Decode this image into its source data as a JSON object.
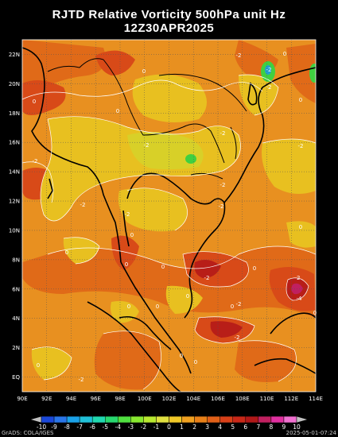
{
  "title_line1": "RJTD Relative Vorticity 500hPa unit Hz",
  "title_line2": "12Z30APR2025",
  "lat_labels": [
    "22N",
    "20N",
    "18N",
    "16N",
    "14N",
    "12N",
    "10N",
    "8N",
    "6N",
    "4N",
    "2N",
    "EQ"
  ],
  "lon_labels": [
    "90E",
    "92E",
    "94E",
    "96E",
    "98E",
    "100E",
    "102E",
    "104E",
    "106E",
    "108E",
    "110E",
    "112E",
    "114E"
  ],
  "contour_labels": [
    "0",
    "0",
    "0",
    "-2",
    "0",
    "-2",
    "-2",
    "0",
    "-2",
    "-2",
    "0",
    "-2",
    "-2",
    "-2",
    "0",
    "0",
    "-2",
    "0",
    "0",
    "-2",
    "0",
    "0",
    "-2",
    "0",
    "0",
    "-2",
    "-4",
    "0",
    "-2",
    "0",
    "-2",
    "0",
    "-2",
    "-2",
    "0",
    "0"
  ],
  "colorbar_labels": [
    "-10",
    "-9",
    "-8",
    "-7",
    "-6",
    "-5",
    "-4",
    "-3",
    "-2",
    "-1",
    "0",
    "1",
    "2",
    "3",
    "4",
    "5",
    "6",
    "7",
    "8",
    "9",
    "10"
  ],
  "colorbar_colors": [
    "#1b48d8",
    "#2a75e8",
    "#1aa1e8",
    "#20c0d8",
    "#20d8b0",
    "#28d870",
    "#50e040",
    "#88e830",
    "#b8e830",
    "#e0e040",
    "#f0c828",
    "#f0a020",
    "#e88018",
    "#e06018",
    "#d84018",
    "#c82818",
    "#b01818",
    "#c02060",
    "#e030a0",
    "#f070d0"
  ],
  "footer_left": "GrADS: COLA/IGES",
  "footer_right": "2025-05-01-07:24",
  "colors": {
    "background": "#000000",
    "field_base": "#e89020",
    "field_orange_dark": "#e06a18",
    "field_red": "#d84a18",
    "field_deep_red": "#b81e18",
    "field_yellow": "#e8c020",
    "field_yellow_light": "#d8d028",
    "field_green": "#40d040",
    "coast": "#000000",
    "contour": "#ffffff"
  }
}
